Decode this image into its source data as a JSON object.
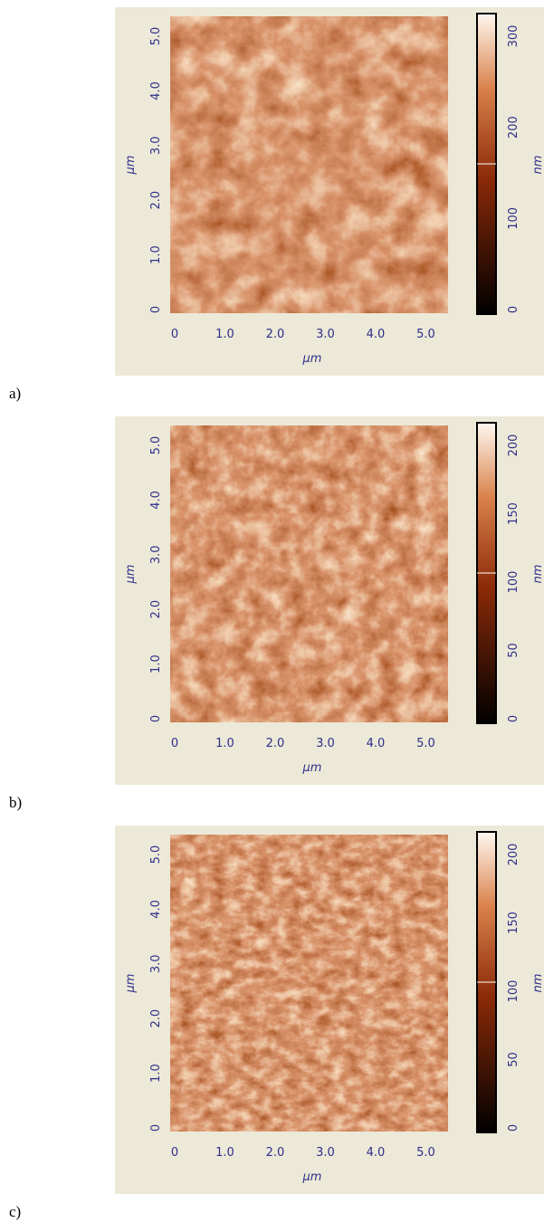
{
  "panels": [
    {
      "label": "a)",
      "x_ticks": [
        "0",
        "1.0",
        "2.0",
        "3.0",
        "4.0",
        "5.0"
      ],
      "y_ticks": [
        "0",
        "1.0",
        "2.0",
        "3.0",
        "4.0",
        "5.0"
      ],
      "x_axis_label": "μm",
      "y_axis_label": "μm",
      "colorbar_ticks": [
        "0",
        "100",
        "200",
        "300"
      ],
      "colorbar_unit": "nm"
    },
    {
      "label": "b)",
      "x_ticks": [
        "0",
        "1.0",
        "2.0",
        "3.0",
        "4.0",
        "5.0"
      ],
      "y_ticks": [
        "0",
        "1.0",
        "2.0",
        "3.0",
        "4.0",
        "5.0"
      ],
      "x_axis_label": "μm",
      "y_axis_label": "μm",
      "colorbar_ticks": [
        "0",
        "50",
        "100",
        "150",
        "200"
      ],
      "colorbar_unit": "nm"
    },
    {
      "label": "c)",
      "x_ticks": [
        "0",
        "1.0",
        "2.0",
        "3.0",
        "4.0",
        "5.0"
      ],
      "y_ticks": [
        "0",
        "1.0",
        "2.0",
        "3.0",
        "4.0",
        "5.0"
      ],
      "x_axis_label": "μm",
      "y_axis_label": "μm",
      "colorbar_ticks": [
        "0",
        "50",
        "100",
        "150",
        "200"
      ],
      "colorbar_unit": "nm"
    }
  ]
}
